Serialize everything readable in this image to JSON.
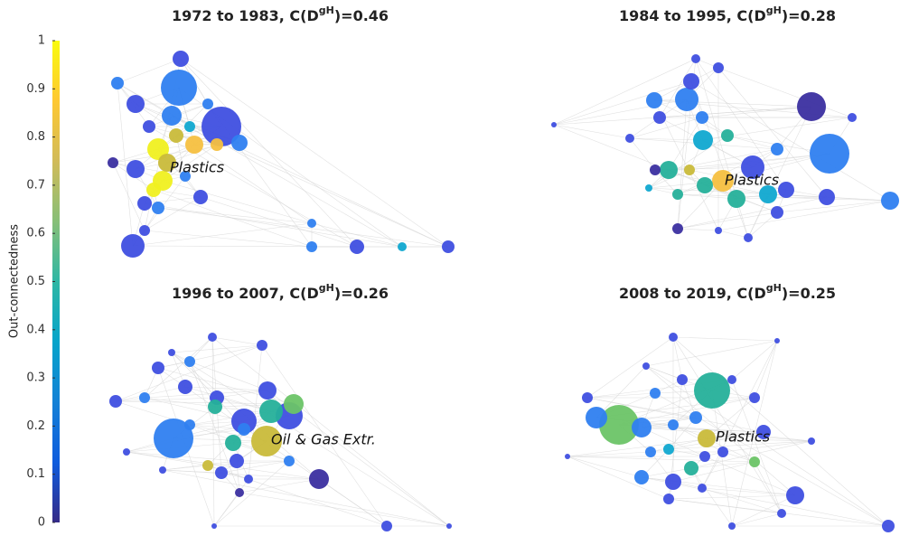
{
  "colorbar": {
    "label": "Out-connectedness",
    "ylim": [
      0,
      1
    ],
    "yticks": [
      0,
      0.1,
      0.2,
      0.3,
      0.4,
      0.5,
      0.6,
      0.7,
      0.8,
      0.9,
      1
    ]
  },
  "panels": [
    {
      "title": {
        "before": "1972 to 1983, C(D",
        "sup": "gH",
        "after": ")=0.46"
      },
      "label": "Plastics"
    },
    {
      "title": {
        "before": "1984 to 1995, C(D",
        "sup": "gH",
        "after": ")=0.28"
      },
      "label": "Plastics"
    },
    {
      "title": {
        "before": "1996 to 2007, C(D",
        "sup": "gH",
        "after": ")=0.26"
      },
      "label": "Oil & Gas Extr."
    },
    {
      "title": {
        "before": "2008 to 2019, C(D",
        "sup": "gH",
        "after": ")=0.25"
      },
      "label": "Plastics"
    }
  ]
}
